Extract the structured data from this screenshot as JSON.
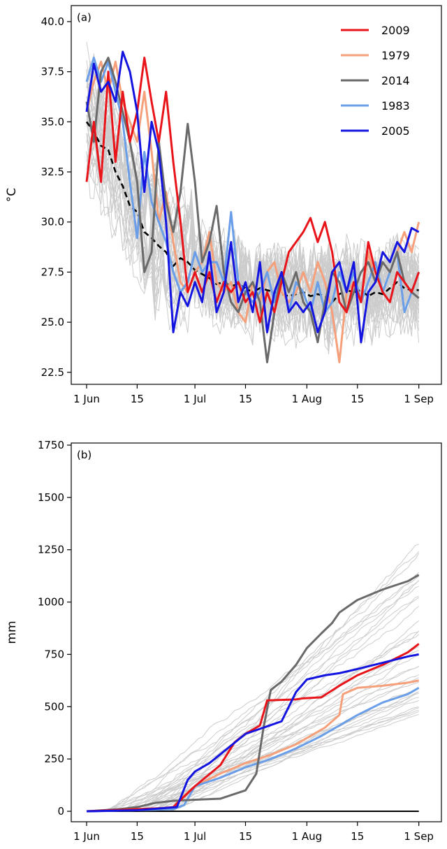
{
  "chart_data": [
    {
      "type": "line",
      "panel_label": "(a)",
      "ylabel": "°C",
      "xlabel": "",
      "x_ticks": [
        "1 Jun",
        "15",
        "1 Jul",
        "15",
        "1 Aug",
        "15",
        "1 Sep"
      ],
      "y_ticks": [
        "22.5",
        "25.0",
        "27.5",
        "30.0",
        "32.5",
        "35.0",
        "37.5",
        "40.0"
      ],
      "xlim": [
        "1 Jun",
        "3 Sep"
      ],
      "ylim": [
        21.9,
        40.8
      ],
      "grid": false,
      "legend_position": "top-right",
      "legend": [
        "2009",
        "1979",
        "2014",
        "1983",
        "2005"
      ],
      "series": [
        {
          "name": "2009",
          "color": "#e8141a",
          "style": "solid",
          "x": [
            "1 Jun",
            "3 Jun",
            "5 Jun",
            "7 Jun",
            "9 Jun",
            "11 Jun",
            "13 Jun",
            "15 Jun",
            "17 Jun",
            "19 Jun",
            "21 Jun",
            "23 Jun",
            "25 Jun",
            "27 Jun",
            "29 Jun",
            "1 Jul",
            "3 Jul",
            "5 Jul",
            "7 Jul",
            "9 Jul",
            "11 Jul",
            "13 Jul",
            "15 Jul",
            "17 Jul",
            "19 Jul",
            "21 Jul",
            "23 Jul",
            "25 Jul",
            "27 Jul",
            "29 Jul",
            "31 Jul",
            "2 Aug",
            "4 Aug",
            "6 Aug",
            "8 Aug",
            "10 Aug",
            "12 Aug",
            "14 Aug",
            "16 Aug",
            "18 Aug",
            "20 Aug",
            "22 Aug",
            "24 Aug",
            "26 Aug",
            "28 Aug",
            "30 Aug",
            "1 Sep"
          ],
          "y": [
            32.0,
            35.0,
            32.0,
            37.5,
            33.0,
            36.5,
            34.0,
            35.5,
            38.2,
            36.0,
            34.0,
            36.5,
            33.0,
            30.0,
            26.5,
            27.5,
            26.5,
            27.5,
            26.0,
            27.0,
            26.5,
            27.0,
            26.0,
            26.5,
            25.0,
            26.5,
            25.5,
            27.0,
            28.5,
            29.0,
            29.5,
            30.2,
            29.0,
            30.0,
            28.5,
            26.0,
            25.5,
            27.0,
            26.0,
            29.0,
            27.5,
            26.5,
            26.0,
            27.5,
            27.0,
            26.5,
            27.5
          ]
        },
        {
          "name": "1979",
          "color": "#f5a07a",
          "style": "solid",
          "x": [
            "1 Jun",
            "3 Jun",
            "5 Jun",
            "7 Jun",
            "9 Jun",
            "11 Jun",
            "13 Jun",
            "15 Jun",
            "17 Jun",
            "19 Jun",
            "21 Jun",
            "23 Jun",
            "25 Jun",
            "27 Jun",
            "29 Jun",
            "1 Jul",
            "3 Jul",
            "5 Jul",
            "7 Jul",
            "9 Jul",
            "11 Jul",
            "13 Jul",
            "15 Jul",
            "17 Jul",
            "19 Jul",
            "21 Jul",
            "23 Jul",
            "25 Jul",
            "27 Jul",
            "29 Jul",
            "31 Jul",
            "2 Aug",
            "4 Aug",
            "6 Aug",
            "8 Aug",
            "10 Aug",
            "12 Aug",
            "14 Aug",
            "16 Aug",
            "18 Aug",
            "20 Aug",
            "22 Aug",
            "24 Aug",
            "26 Aug",
            "28 Aug",
            "30 Aug",
            "1 Sep"
          ],
          "y": [
            35.5,
            37.0,
            38.0,
            36.5,
            38.0,
            36.0,
            35.0,
            34.0,
            36.5,
            33.5,
            30.0,
            31.5,
            29.0,
            27.0,
            26.5,
            27.5,
            28.0,
            29.5,
            27.0,
            26.5,
            27.0,
            25.5,
            25.0,
            27.0,
            26.0,
            27.5,
            28.0,
            26.5,
            26.0,
            26.5,
            27.5,
            26.5,
            28.0,
            27.0,
            25.5,
            23.0,
            26.5,
            27.0,
            26.0,
            28.5,
            27.0,
            28.0,
            27.5,
            28.5,
            29.5,
            28.5,
            30.0
          ]
        },
        {
          "name": "2014",
          "color": "#6a6a6a",
          "style": "solid",
          "x": [
            "1 Jun",
            "3 Jun",
            "5 Jun",
            "7 Jun",
            "9 Jun",
            "11 Jun",
            "13 Jun",
            "15 Jun",
            "17 Jun",
            "19 Jun",
            "21 Jun",
            "23 Jun",
            "25 Jun",
            "27 Jun",
            "29 Jun",
            "1 Jul",
            "3 Jul",
            "5 Jul",
            "7 Jul",
            "9 Jul",
            "11 Jul",
            "13 Jul",
            "15 Jul",
            "17 Jul",
            "19 Jul",
            "21 Jul",
            "23 Jul",
            "25 Jul",
            "27 Jul",
            "29 Jul",
            "31 Jul",
            "2 Aug",
            "4 Aug",
            "6 Aug",
            "8 Aug",
            "10 Aug",
            "12 Aug",
            "14 Aug",
            "16 Aug",
            "18 Aug",
            "20 Aug",
            "22 Aug",
            "24 Aug",
            "26 Aug",
            "28 Aug",
            "30 Aug",
            "1 Sep"
          ],
          "y": [
            36.0,
            34.0,
            37.5,
            38.2,
            37.0,
            35.5,
            34.0,
            32.0,
            27.5,
            28.5,
            34.0,
            31.0,
            29.5,
            31.5,
            34.9,
            32.0,
            28.0,
            29.0,
            30.8,
            27.5,
            26.0,
            25.5,
            26.5,
            27.0,
            26.0,
            23.0,
            25.5,
            27.5,
            26.5,
            27.5,
            26.0,
            25.5,
            24.0,
            26.0,
            27.5,
            27.0,
            25.5,
            26.5,
            27.5,
            28.0,
            27.0,
            28.0,
            27.5,
            28.5,
            27.0,
            26.5,
            26.2
          ]
        },
        {
          "name": "1983",
          "color": "#6a9ee8",
          "style": "solid",
          "x": [
            "1 Jun",
            "3 Jun",
            "5 Jun",
            "7 Jun",
            "9 Jun",
            "11 Jun",
            "13 Jun",
            "15 Jun",
            "17 Jun",
            "19 Jun",
            "21 Jun",
            "23 Jun",
            "25 Jun",
            "27 Jun",
            "29 Jun",
            "1 Jul",
            "3 Jul",
            "5 Jul",
            "7 Jul",
            "9 Jul",
            "11 Jul",
            "13 Jul",
            "15 Jul",
            "17 Jul",
            "19 Jul",
            "21 Jul",
            "23 Jul",
            "25 Jul",
            "27 Jul",
            "29 Jul",
            "31 Jul",
            "2 Aug",
            "4 Aug",
            "6 Aug",
            "8 Aug",
            "10 Aug",
            "12 Aug",
            "14 Aug",
            "16 Aug",
            "18 Aug",
            "20 Aug",
            "22 Aug",
            "24 Aug",
            "26 Aug",
            "28 Aug",
            "30 Aug",
            "1 Sep"
          ],
          "y": [
            37.0,
            38.2,
            37.0,
            38.0,
            36.5,
            35.0,
            32.0,
            29.2,
            33.5,
            31.0,
            30.0,
            29.0,
            27.5,
            26.5,
            27.0,
            28.5,
            27.5,
            28.0,
            28.0,
            27.0,
            30.5,
            27.0,
            26.5,
            26.0,
            26.5,
            27.5,
            26.0,
            27.5,
            25.5,
            27.0,
            26.5,
            25.5,
            27.0,
            25.5,
            26.0,
            27.5,
            26.5,
            27.5,
            26.0,
            27.0,
            28.0,
            26.5,
            27.5,
            28.5,
            25.5,
            26.5,
            27.5
          ]
        },
        {
          "name": "2005",
          "color": "#1414e0",
          "style": "solid",
          "x": [
            "1 Jun",
            "3 Jun",
            "5 Jun",
            "7 Jun",
            "9 Jun",
            "11 Jun",
            "13 Jun",
            "15 Jun",
            "17 Jun",
            "19 Jun",
            "21 Jun",
            "23 Jun",
            "25 Jun",
            "27 Jun",
            "29 Jun",
            "1 Jul",
            "3 Jul",
            "5 Jul",
            "7 Jul",
            "9 Jul",
            "11 Jul",
            "13 Jul",
            "15 Jul",
            "17 Jul",
            "19 Jul",
            "21 Jul",
            "23 Jul",
            "25 Jul",
            "27 Jul",
            "29 Jul",
            "31 Jul",
            "2 Aug",
            "4 Aug",
            "6 Aug",
            "8 Aug",
            "10 Aug",
            "12 Aug",
            "14 Aug",
            "16 Aug",
            "18 Aug",
            "20 Aug",
            "22 Aug",
            "24 Aug",
            "26 Aug",
            "28 Aug",
            "30 Aug",
            "1 Sep"
          ],
          "y": [
            35.5,
            37.9,
            36.5,
            37.0,
            36.0,
            38.5,
            37.5,
            35.5,
            31.5,
            35.0,
            33.5,
            30.0,
            24.5,
            26.5,
            25.8,
            27.0,
            26.0,
            28.5,
            25.5,
            26.5,
            29.0,
            26.0,
            27.0,
            25.5,
            28.0,
            24.5,
            26.5,
            27.5,
            25.5,
            26.0,
            25.5,
            26.0,
            24.5,
            25.5,
            27.5,
            28.0,
            26.5,
            28.0,
            24.0,
            26.5,
            27.0,
            28.5,
            28.0,
            29.0,
            28.5,
            29.7,
            29.5
          ]
        },
        {
          "name": "",
          "color": "#000000",
          "style": "dashed",
          "x": [
            "1 Jun",
            "3 Jun",
            "5 Jun",
            "7 Jun",
            "9 Jun",
            "11 Jun",
            "13 Jun",
            "15 Jun",
            "17 Jun",
            "19 Jun",
            "21 Jun",
            "23 Jun",
            "25 Jun",
            "27 Jun",
            "29 Jun",
            "1 Jul",
            "3 Jul",
            "5 Jul",
            "7 Jul",
            "9 Jul",
            "11 Jul",
            "13 Jul",
            "15 Jul",
            "17 Jul",
            "19 Jul",
            "21 Jul",
            "23 Jul",
            "25 Jul",
            "27 Jul",
            "29 Jul",
            "31 Jul",
            "2 Aug",
            "4 Aug",
            "6 Aug",
            "8 Aug",
            "10 Aug",
            "12 Aug",
            "14 Aug",
            "16 Aug",
            "18 Aug",
            "20 Aug",
            "22 Aug",
            "24 Aug",
            "26 Aug",
            "28 Aug",
            "30 Aug",
            "1 Sep"
          ],
          "y": [
            35.0,
            34.5,
            33.8,
            33.6,
            32.5,
            31.8,
            30.8,
            30.5,
            29.5,
            29.2,
            28.8,
            28.5,
            27.8,
            28.2,
            28.0,
            27.6,
            27.4,
            27.2,
            26.9,
            27.0,
            26.8,
            26.9,
            26.7,
            26.5,
            26.7,
            26.6,
            26.5,
            26.4,
            26.3,
            26.4,
            26.5,
            26.3,
            26.4,
            26.3,
            26.0,
            26.4,
            26.6,
            26.5,
            26.6,
            26.3,
            26.5,
            26.4,
            26.7,
            27.0,
            26.7,
            26.6,
            26.6
          ]
        }
      ],
      "background_years": {
        "color": "#cccccc",
        "count": 35
      }
    },
    {
      "type": "line",
      "panel_label": "(b)",
      "ylabel": "mm",
      "xlabel": "",
      "x_ticks": [
        "1 Jun",
        "15",
        "1 Jul",
        "15",
        "1 Aug",
        "15",
        "1 Sep"
      ],
      "y_ticks": [
        "0",
        "250",
        "500",
        "750",
        "1000",
        "1250",
        "1500",
        "1750"
      ],
      "xlim": [
        "1 Jun",
        "3 Sep"
      ],
      "ylim": [
        -50,
        1760
      ],
      "grid": false,
      "series": [
        {
          "name": "2009",
          "color": "#e8141a",
          "x": [
            "1 Jun",
            "8 Jun",
            "15 Jun",
            "22 Jun",
            "25 Jun",
            "1 Jul",
            "8 Jul",
            "12 Jul",
            "15 Jul",
            "17 Jul",
            "19 Jul",
            "21 Jul",
            "29 Jul",
            "31 Jul",
            "5 Aug",
            "10 Aug",
            "15 Aug",
            "22 Aug",
            "29 Aug",
            "1 Sep"
          ],
          "y": [
            0,
            5,
            10,
            15,
            20,
            120,
            220,
            330,
            370,
            390,
            410,
            530,
            535,
            540,
            545,
            600,
            650,
            700,
            760,
            800
          ]
        },
        {
          "name": "1979",
          "color": "#f5a07a",
          "x": [
            "1 Jun",
            "10 Jun",
            "20 Jun",
            "25 Jun",
            "27 Jun",
            "1 Jul",
            "8 Jul",
            "15 Jul",
            "22 Jul",
            "29 Jul",
            "1 Aug",
            "6 Aug",
            "10 Aug",
            "11 Aug",
            "15 Aug",
            "22 Aug",
            "29 Aug",
            "1 Sep"
          ],
          "y": [
            0,
            5,
            10,
            20,
            60,
            120,
            180,
            230,
            270,
            320,
            350,
            400,
            460,
            560,
            590,
            600,
            615,
            625
          ]
        },
        {
          "name": "2014",
          "color": "#6a6a6a",
          "x": [
            "1 Jun",
            "10 Jun",
            "15 Jun",
            "20 Jun",
            "25 Jun",
            "1 Jul",
            "8 Jul",
            "15 Jul",
            "18 Jul",
            "20 Jul",
            "22 Jul",
            "25 Jul",
            "29 Jul",
            "1 Aug",
            "5 Aug",
            "8 Aug",
            "10 Aug",
            "15 Aug",
            "22 Aug",
            "29 Aug",
            "1 Sep"
          ],
          "y": [
            0,
            10,
            20,
            40,
            50,
            55,
            60,
            100,
            180,
            400,
            580,
            620,
            700,
            780,
            850,
            900,
            950,
            1010,
            1060,
            1100,
            1130
          ]
        },
        {
          "name": "1983",
          "color": "#6a9ee8",
          "x": [
            "1 Jun",
            "15 Jun",
            "25 Jun",
            "28 Jun",
            "1 Jul",
            "8 Jul",
            "15 Jul",
            "22 Jul",
            "29 Jul",
            "5 Aug",
            "10 Aug",
            "15 Aug",
            "22 Aug",
            "29 Aug",
            "1 Sep"
          ],
          "y": [
            0,
            5,
            10,
            30,
            120,
            160,
            210,
            250,
            300,
            360,
            410,
            460,
            520,
            560,
            590
          ]
        },
        {
          "name": "2005",
          "color": "#1414e0",
          "x": [
            "1 Jun",
            "15 Jun",
            "26 Jun",
            "29 Jun",
            "1 Jul",
            "5 Jul",
            "10 Jul",
            "15 Jul",
            "20 Jul",
            "25 Jul",
            "29 Jul",
            "1 Aug",
            "6 Aug",
            "10 Aug",
            "15 Aug",
            "22 Aug",
            "29 Aug",
            "1 Sep"
          ],
          "y": [
            0,
            5,
            20,
            150,
            190,
            230,
            300,
            370,
            400,
            430,
            570,
            630,
            650,
            660,
            680,
            710,
            740,
            750
          ]
        },
        {
          "name": "",
          "color": "#000000",
          "x": [
            "1 Jun",
            "1 Sep"
          ],
          "y": [
            0,
            0
          ]
        }
      ],
      "background_years": {
        "color": "#cccccc",
        "count": 35
      }
    }
  ]
}
